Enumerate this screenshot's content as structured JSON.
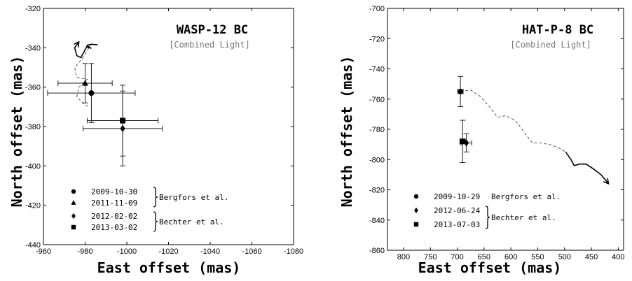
{
  "chart_data": [
    {
      "type": "scatter",
      "title": "WASP-12 BC",
      "subtitle": "[Combined Light]",
      "xlabel": "East offset (mas)",
      "ylabel": "North offset (mas)",
      "xlim": [
        -960,
        -1080
      ],
      "ylim": [
        -440,
        -320
      ],
      "xticks": [
        -960,
        -980,
        -1000,
        -1020,
        -1040,
        -1060,
        -1080
      ],
      "yticks": [
        -440,
        -420,
        -400,
        -380,
        -360,
        -340,
        -320
      ],
      "points": [
        {
          "date": "2009-10-30",
          "marker": "circle",
          "x": -983,
          "y": -363,
          "xerr": 21,
          "yerr": 15
        },
        {
          "date": "2011-11-09",
          "marker": "triangle",
          "x": -980,
          "y": -358,
          "xerr": 13,
          "yerr": 10
        },
        {
          "date": "2012-02-02",
          "marker": "diamond",
          "x": -998,
          "y": -381,
          "xerr": 19,
          "yerr": 19
        },
        {
          "date": "2013-03-02",
          "marker": "square",
          "x": -998,
          "y": -377,
          "xerr": 17,
          "yerr": 18
        }
      ],
      "background_track": [
        [
          -983,
          -338
        ],
        [
          -979,
          -345
        ],
        [
          -975,
          -350
        ],
        [
          -976,
          -355
        ],
        [
          -981,
          -356
        ],
        [
          -977,
          -360
        ],
        [
          -976,
          -365
        ],
        [
          -980,
          -369
        ],
        [
          -982,
          -370
        ]
      ],
      "proper_motion_track": [
        [
          -986,
          -338.5
        ],
        [
          -983,
          -338.2
        ],
        [
          -981,
          -338.7
        ],
        [
          -981,
          -339.6
        ],
        [
          -983,
          -340.3
        ],
        [
          -981,
          -339
        ],
        [
          -980,
          -341
        ],
        [
          -979,
          -343
        ],
        [
          -978,
          -345
        ],
        [
          -976,
          -344
        ],
        [
          -975,
          -340
        ],
        [
          -977,
          -337
        ]
      ],
      "legend": [
        {
          "marker": "circle",
          "label": "2009-10-30"
        },
        {
          "marker": "triangle",
          "label": "2011-11-09"
        },
        {
          "marker": "diamond",
          "label": "2012-02-02"
        },
        {
          "marker": "square",
          "label": "2013-03-02"
        }
      ],
      "groups": [
        {
          "label": "Bergfors et al.",
          "entries": [
            0,
            1
          ]
        },
        {
          "label": "Bechter et al.",
          "entries": [
            2,
            3
          ]
        }
      ]
    },
    {
      "type": "scatter",
      "title": "HAT-P-8 BC",
      "subtitle": "[Combined Light]",
      "xlabel": "East offset (mas)",
      "ylabel": "North offset (mas)",
      "xlim": [
        830,
        390
      ],
      "ylim": [
        -860,
        -700
      ],
      "xticks": [
        800,
        750,
        700,
        650,
        600,
        550,
        500,
        450,
        400
      ],
      "yticks": [
        -860,
        -840,
        -820,
        -800,
        -780,
        -760,
        -740,
        -720,
        -700
      ],
      "points": [
        {
          "date": "2009-10-29",
          "marker": "circle",
          "x": 694,
          "y": -755,
          "xerr": 5,
          "yerr": 10
        },
        {
          "date": "2012-06-24",
          "marker": "diamond",
          "x": 683,
          "y": -789,
          "xerr": 10,
          "yerr": 6
        },
        {
          "date": "2013-07-03",
          "marker": "square",
          "x": 690,
          "y": -788,
          "xerr": 5,
          "yerr": 14
        }
      ],
      "background_track": [
        [
          694,
          -755
        ],
        [
          675,
          -754
        ],
        [
          658,
          -758
        ],
        [
          640,
          -765
        ],
        [
          625,
          -772
        ],
        [
          610,
          -771
        ],
        [
          592,
          -774
        ],
        [
          575,
          -782
        ],
        [
          560,
          -789
        ],
        [
          545,
          -789
        ],
        [
          528,
          -790
        ],
        [
          512,
          -792
        ],
        [
          498,
          -795
        ]
      ],
      "proper_motion_track": [
        [
          498,
          -795
        ],
        [
          488,
          -800
        ],
        [
          482,
          -804
        ],
        [
          472,
          -803
        ],
        [
          460,
          -803
        ],
        [
          447,
          -806
        ],
        [
          432,
          -810
        ],
        [
          418,
          -816
        ]
      ],
      "legend": [
        {
          "marker": "circle",
          "label": "2009-10-29"
        },
        {
          "marker": "diamond",
          "label": "2012-06-24"
        },
        {
          "marker": "square",
          "label": "2013-07-03"
        }
      ],
      "groups": [
        {
          "label": "Bergfors et al.",
          "entries": [
            0
          ]
        },
        {
          "label": "Bechter et al.",
          "entries": [
            1,
            2
          ]
        }
      ]
    }
  ]
}
